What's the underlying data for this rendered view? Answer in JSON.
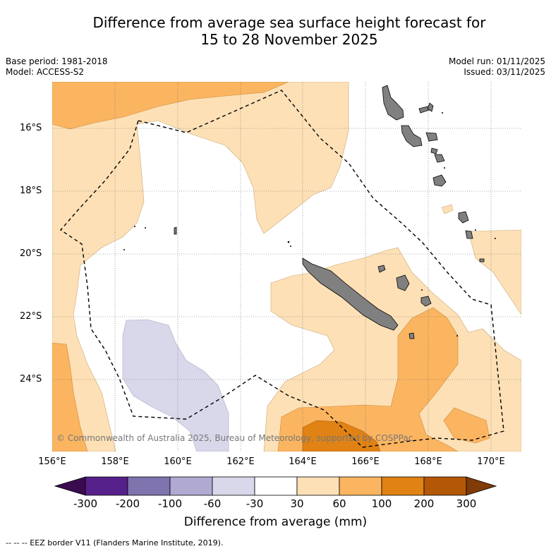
{
  "title_line1": "Difference from average sea surface height forecast for",
  "title_line2": "15 to 28 November 2025",
  "meta": {
    "base_period": "Base period: 1981-2018",
    "model": "Model: ACCESS-S2",
    "model_run": "Model run: 01/11/2025",
    "issued": "Issued: 03/11/2025"
  },
  "map": {
    "lat_labels": [
      "16°S",
      "18°S",
      "20°S",
      "22°S",
      "24°S"
    ],
    "lon_labels": [
      "156°E",
      "158°E",
      "160°E",
      "162°E",
      "164°E",
      "166°E",
      "168°E",
      "170°E"
    ],
    "copyright": "© Commonwealth of Australia 2025, Bureau of Meteorology, supported by COSPPac",
    "land_color": "#808080",
    "eez_line": "dashed"
  },
  "colorbar": {
    "ticks": [
      "-300",
      "-200",
      "-100",
      "-60",
      "-30",
      "30",
      "60",
      "100",
      "200",
      "300"
    ],
    "colors": [
      "#3a0c4f",
      "#56208a",
      "#7f74ae",
      "#b0a9d2",
      "#d8d8ea",
      "#ffffff",
      "#fde0b6",
      "#fbb561",
      "#e08214",
      "#b35806",
      "#7f3b08"
    ],
    "label": "Difference from average (mm)"
  },
  "footer": "--  --  -- EEZ border V11 (Flanders Marine Institute, 2019)."
}
